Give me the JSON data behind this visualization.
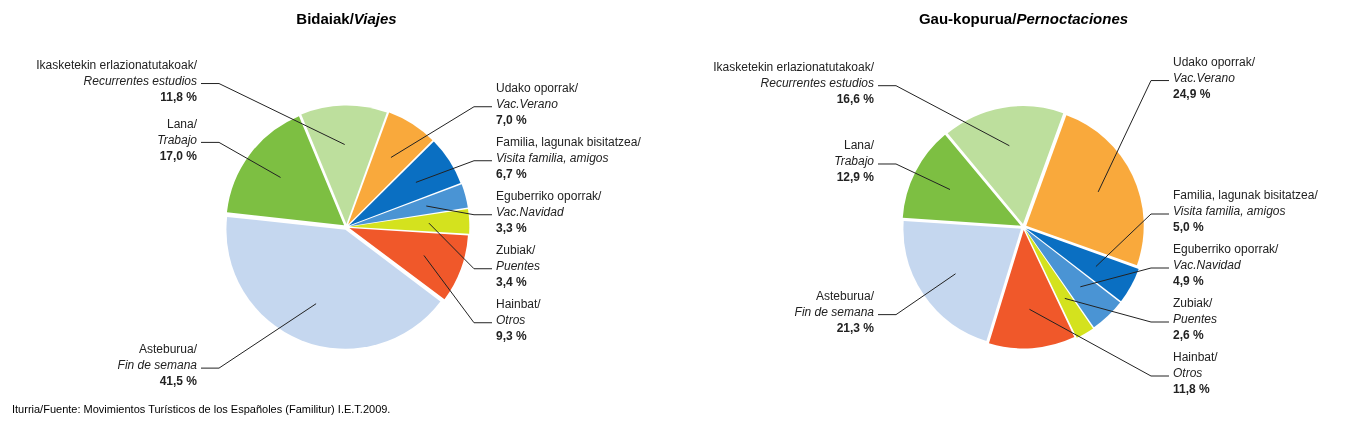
{
  "chart_data": [
    {
      "type": "pie",
      "title": "Bidaiak/Viajes",
      "categories": [
        "Udako oporrak/Vac.Verano",
        "Familia, lagunak bisitatzea/Visita familia, amigos",
        "Eguberriko oporrak/Vac.Navidad",
        "Zubiak/Puentes",
        "Hainbat/Otros",
        "Asteburua/Fin de semana",
        "Lana/Trabajo",
        "Ikasketekin erlazionatutakoak/Recurrentes estudios"
      ],
      "values": [
        7.0,
        6.7,
        3.3,
        3.4,
        9.3,
        41.5,
        17.0,
        11.8
      ],
      "value_labels": [
        "7,0 %",
        "6,7 %",
        "3,3 %",
        "3,4 %",
        "9,3 %",
        "41,5 %",
        "17,0 %",
        "11,8 %"
      ],
      "colors": [
        "#f9a93c",
        "#0a6fc2",
        "#4a94d4",
        "#d4e21e",
        "#f0582a",
        "#c5d7ef",
        "#7dbf42",
        "#bddf9d"
      ],
      "legend": false,
      "annotations": [
        "Iturria/Fuente: Movimientos Turísticos de los Españoles (Familitur) I.E.T.2009."
      ]
    },
    {
      "type": "pie",
      "title": "Gau-kopurua/Pernoctaciones",
      "categories": [
        "Udako oporrak/Vac.Verano",
        "Familia, lagunak bisitatzea/Visita familia, amigos",
        "Eguberriko oporrak/Vac.Navidad",
        "Zubiak/Puentes",
        "Hainbat/Otros",
        "Asteburua/Fin de semana",
        "Lana/Trabajo",
        "Ikasketekin erlazionatutakoak/Recurrentes estudios"
      ],
      "values": [
        24.9,
        5.0,
        4.9,
        2.6,
        11.8,
        21.3,
        12.9,
        16.6
      ],
      "value_labels": [
        "24,9 %",
        "5,0 %",
        "4,9 %",
        "2,6 %",
        "11,8 %",
        "21,3 %",
        "12,9 %",
        "16,6 %"
      ],
      "colors": [
        "#f9a93c",
        "#0a6fc2",
        "#4a94d4",
        "#d4e21e",
        "#f0582a",
        "#c5d7ef",
        "#7dbf42",
        "#bddf9d"
      ],
      "legend": false
    }
  ]
}
